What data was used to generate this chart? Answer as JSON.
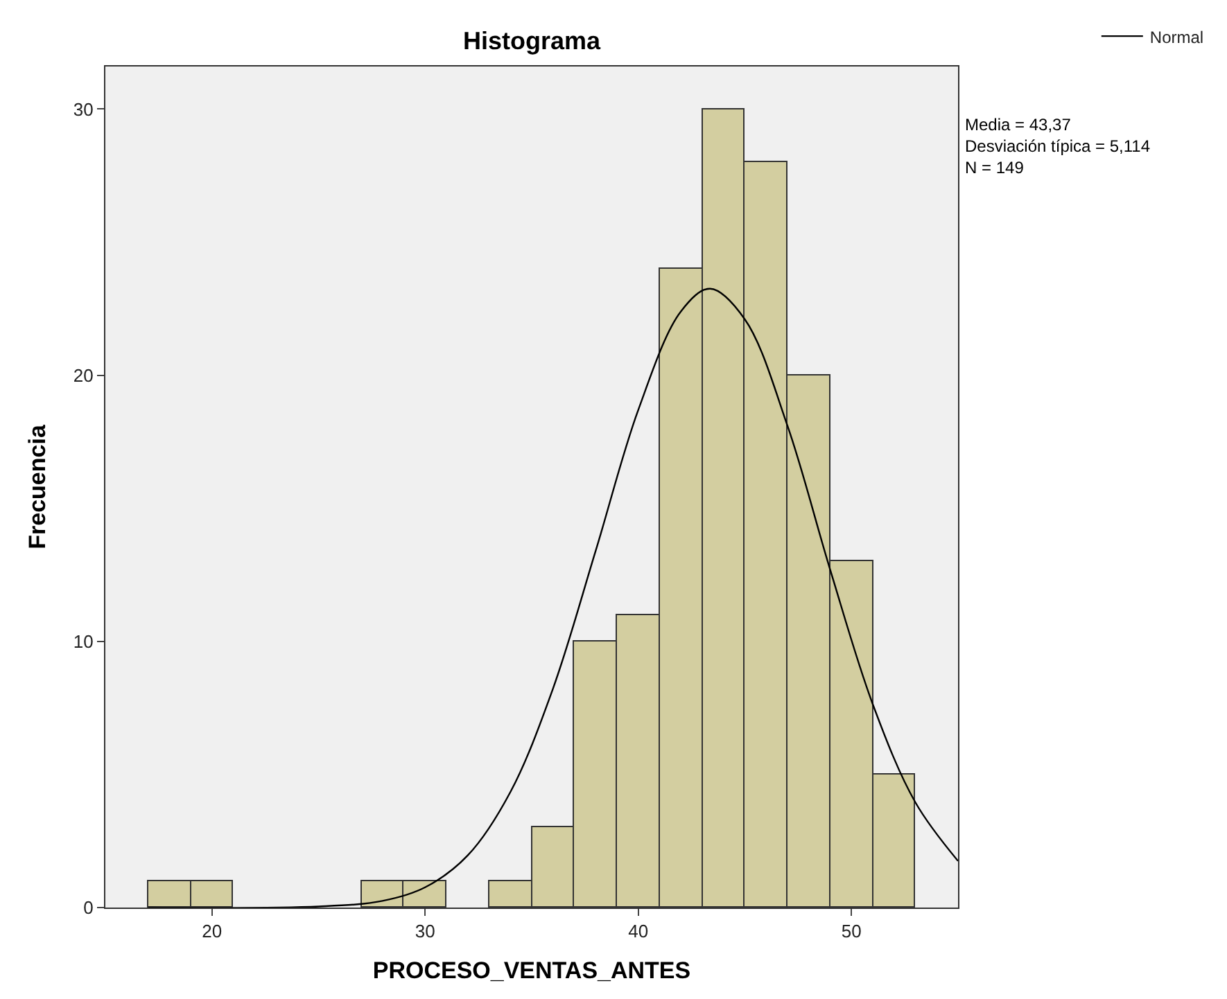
{
  "chart_data": {
    "type": "histogram",
    "title": "Histograma",
    "xlabel": "PROCESO_VENTAS_ANTES",
    "ylabel": "Frecuencia",
    "bins": [
      17,
      19,
      21,
      23,
      25,
      27,
      29,
      31,
      33,
      35,
      37,
      39,
      41,
      43,
      45,
      47,
      49,
      51,
      53
    ],
    "values": [
      1,
      1,
      0,
      0,
      0,
      1,
      1,
      0,
      1,
      3,
      10,
      11,
      24,
      30,
      28,
      20,
      13,
      5
    ],
    "color": "#d3cea0",
    "series": [
      {
        "name": "Normal",
        "type": "line",
        "color": "#000000",
        "x": [
          17,
          25,
          28,
          30,
          32,
          34,
          36,
          38,
          40,
          42,
          43.37,
          45,
          47,
          49,
          51,
          53,
          55
        ],
        "values": [
          0.0,
          0.04,
          0.25,
          0.76,
          1.96,
          4.34,
          8.23,
          13.4,
          18.7,
          22.4,
          23.25,
          22.1,
          18.1,
          12.7,
          7.64,
          3.95,
          1.75
        ]
      }
    ],
    "xlim": [
      15,
      55
    ],
    "ylim": [
      0,
      31.6
    ],
    "xticks": [
      20,
      30,
      40,
      50
    ],
    "yticks": [
      0,
      10,
      20,
      30
    ],
    "grid": false,
    "legend": "top right",
    "annotations": [
      "Media = 43,37\nDesviación típica = 5,114\nN = 149"
    ]
  }
}
